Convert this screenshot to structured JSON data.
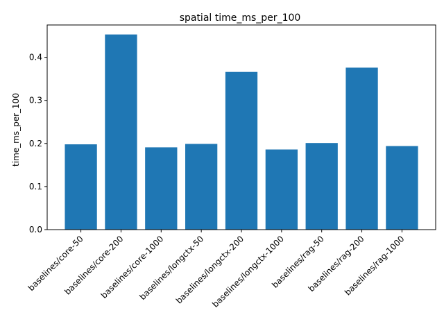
{
  "chart_data": {
    "type": "bar",
    "title": "spatial time_ms_per_100",
    "xlabel": "",
    "ylabel": "time_ms_per_100",
    "categories": [
      "baselines/core-50",
      "baselines/core-200",
      "baselines/core-1000",
      "baselines/longctx-50",
      "baselines/longctx-200",
      "baselines/longctx-1000",
      "baselines/rag-50",
      "baselines/rag-200",
      "baselines/rag-1000"
    ],
    "values": [
      0.198,
      0.453,
      0.191,
      0.199,
      0.366,
      0.186,
      0.201,
      0.376,
      0.194
    ],
    "ylim": [
      0,
      0.475
    ],
    "yticks": [
      0.0,
      0.1,
      0.2,
      0.3,
      0.4
    ],
    "ytick_labels": [
      "0.0",
      "0.1",
      "0.2",
      "0.3",
      "0.4"
    ],
    "bar_color": "#1f77b4",
    "grid": false,
    "legend": "none"
  }
}
